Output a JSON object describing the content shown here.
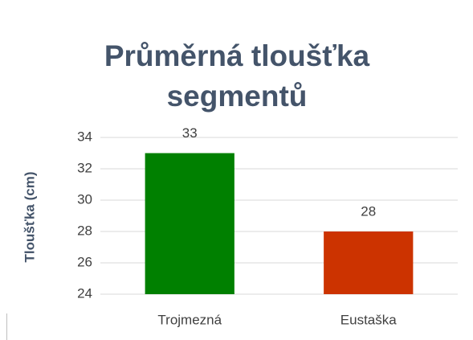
{
  "chart_data": {
    "type": "bar",
    "title": "Průměrná tloušťka segmentů",
    "y_label": "Tloušťka (cm)",
    "categories": [
      "Trojmezná",
      "Eustaška"
    ],
    "values": [
      33,
      28
    ],
    "colors": [
      "#008000",
      "#cc3300"
    ],
    "ylim": [
      24,
      34
    ],
    "yticks": [
      24,
      26,
      28,
      30,
      32,
      34
    ],
    "grid": true,
    "data_labels": true
  }
}
